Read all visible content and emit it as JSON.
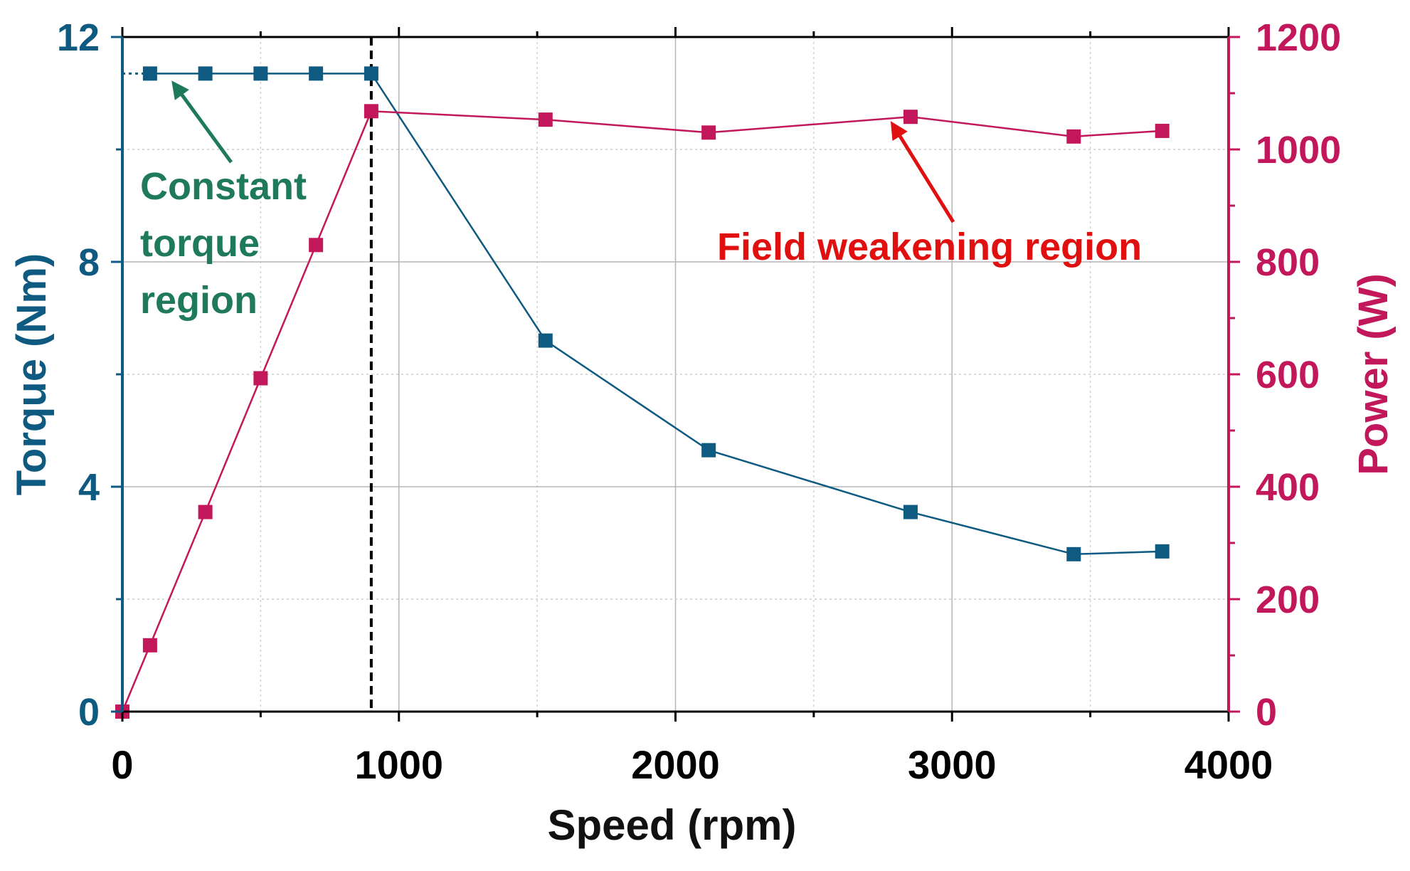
{
  "chart_data": {
    "type": "line",
    "title": "",
    "xlabel": "Speed (rpm)",
    "ylabel": "Torque (Nm)",
    "y2label": "Power (W)",
    "xlim": [
      0,
      4000
    ],
    "ylim": [
      0,
      12
    ],
    "y2lim": [
      0,
      1200
    ],
    "x_ticks": [
      0,
      1000,
      2000,
      3000,
      4000
    ],
    "x_tick_labels": [
      "0",
      "1000",
      "2000",
      "3000",
      "4000"
    ],
    "y_ticks": [
      0,
      4,
      8,
      12
    ],
    "y_tick_labels": [
      "0",
      "4",
      "8",
      "12"
    ],
    "y2_ticks": [
      0,
      200,
      400,
      600,
      800,
      1000,
      1200
    ],
    "y2_tick_labels": [
      "0",
      "200",
      "400",
      "600",
      "800",
      "1000",
      "1200"
    ],
    "grid": true,
    "series": [
      {
        "name": "Torque",
        "axis": "left",
        "color": "#0e5a80",
        "x": [
          100,
          300,
          500,
          700,
          900,
          1530,
          2120,
          2850,
          3440,
          3760
        ],
        "values": [
          11.35,
          11.35,
          11.35,
          11.35,
          11.35,
          6.6,
          4.65,
          3.55,
          2.8,
          2.85
        ]
      },
      {
        "name": "Power",
        "axis": "right",
        "color": "#c2185b",
        "x": [
          0,
          100,
          300,
          500,
          700,
          900,
          1530,
          2120,
          2850,
          3440,
          3760
        ],
        "values": [
          0,
          118,
          355,
          593,
          830,
          1068,
          1053,
          1030,
          1058,
          1023,
          1033
        ]
      }
    ],
    "annotations": [
      {
        "lines": [
          "Constant",
          "torque",
          "region"
        ],
        "color": "#1e7a5a",
        "arrow_to_x": 170,
        "arrow_to_y": 11.3,
        "axis": "left"
      },
      {
        "lines": [
          "Field weakening region"
        ],
        "color": "#e01010",
        "arrow_to_x": 2790,
        "arrow_to_y": 1045,
        "axis": "right"
      }
    ],
    "reference_lines": [
      {
        "orientation": "vertical",
        "x": 900,
        "style": "dashed",
        "color": "#000000"
      }
    ]
  }
}
